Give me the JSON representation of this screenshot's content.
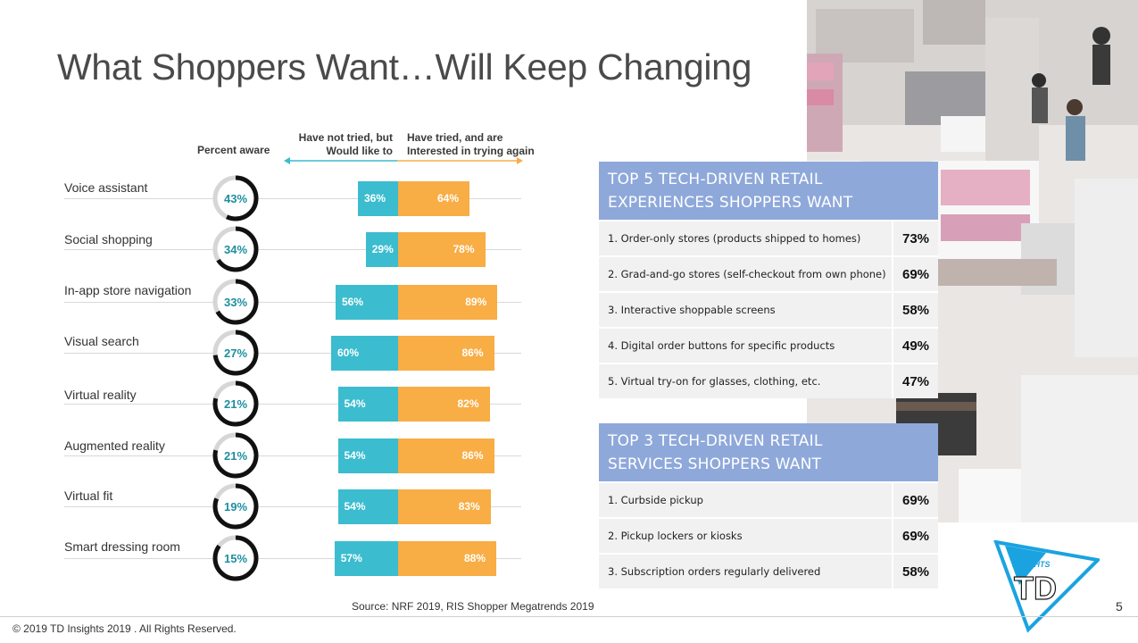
{
  "title": "What Shoppers Want…Will Keep Changing",
  "headers": {
    "percent_aware": "Percent aware",
    "not_tried": [
      "Have not tried, but",
      "Would like to"
    ],
    "tried": [
      "Have tried, and are",
      "Interested in trying again"
    ]
  },
  "colors": {
    "teal": "#3bbccf",
    "orange": "#f8ad45",
    "ring": "#111111",
    "ring_bg": "#d6d6d6",
    "panel_header": "#8ea8da"
  },
  "chart_data": {
    "type": "bar",
    "categories": [
      "Voice assistant",
      "Social shopping",
      "In-app store navigation",
      "Visual search",
      "Virtual reality",
      "Augmented reality",
      "Virtual fit",
      "Smart dressing room"
    ],
    "series": [
      {
        "name": "Percent aware",
        "values": [
          43,
          34,
          33,
          27,
          21,
          21,
          19,
          15
        ],
        "labels": [
          "43%",
          "34%",
          "33%",
          "27%",
          "21%",
          "21%",
          "19%",
          "15%"
        ]
      },
      {
        "name": "Have not tried, but Would like to",
        "values": [
          36,
          29,
          56,
          60,
          54,
          54,
          54,
          57
        ],
        "labels": [
          "36%",
          "29%",
          "56%",
          "60%",
          "54%",
          "54%",
          "54%",
          "57%"
        ]
      },
      {
        "name": "Have tried, and are Interested in trying again",
        "values": [
          64,
          78,
          89,
          86,
          82,
          86,
          83,
          88
        ],
        "labels": [
          "64%",
          "78%",
          "89%",
          "86%",
          "82%",
          "86%",
          "83%",
          "88%"
        ]
      }
    ]
  },
  "panel1": {
    "title": [
      "TOP 5 TECH-DRIVEN RETAIL",
      "EXPERIENCES SHOPPERS WANT"
    ],
    "rows": [
      {
        "label": "1.  Order-only stores (products shipped to homes)",
        "value": "73%"
      },
      {
        "label": "2.  Grad-and-go stores (self-checkout from own phone)",
        "value": "69%"
      },
      {
        "label": "3.  Interactive shoppable screens",
        "value": "58%"
      },
      {
        "label": "4.  Digital order buttons for specific products",
        "value": "49%"
      },
      {
        "label": "5.  Virtual try-on for glasses, clothing, etc.",
        "value": "47%"
      }
    ]
  },
  "panel2": {
    "title": [
      "TOP 3 TECH-DRIVEN RETAIL",
      "SERVICES SHOPPERS WANT"
    ],
    "rows": [
      {
        "label": "1.  Curbside pickup",
        "value": "69%"
      },
      {
        "label": "2.  Pickup lockers or kiosks",
        "value": "69%"
      },
      {
        "label": "3.  Subscription orders regularly delivered",
        "value": "58%"
      }
    ]
  },
  "logo": {
    "top_text": "INSIGHTS",
    "main_text": "TD"
  },
  "source": "Source: NRF 2019, RIS Shopper Megatrends 2019",
  "copyright": "© 2019 TD Insights 2019 . All Rights Reserved.",
  "page_number": "5"
}
